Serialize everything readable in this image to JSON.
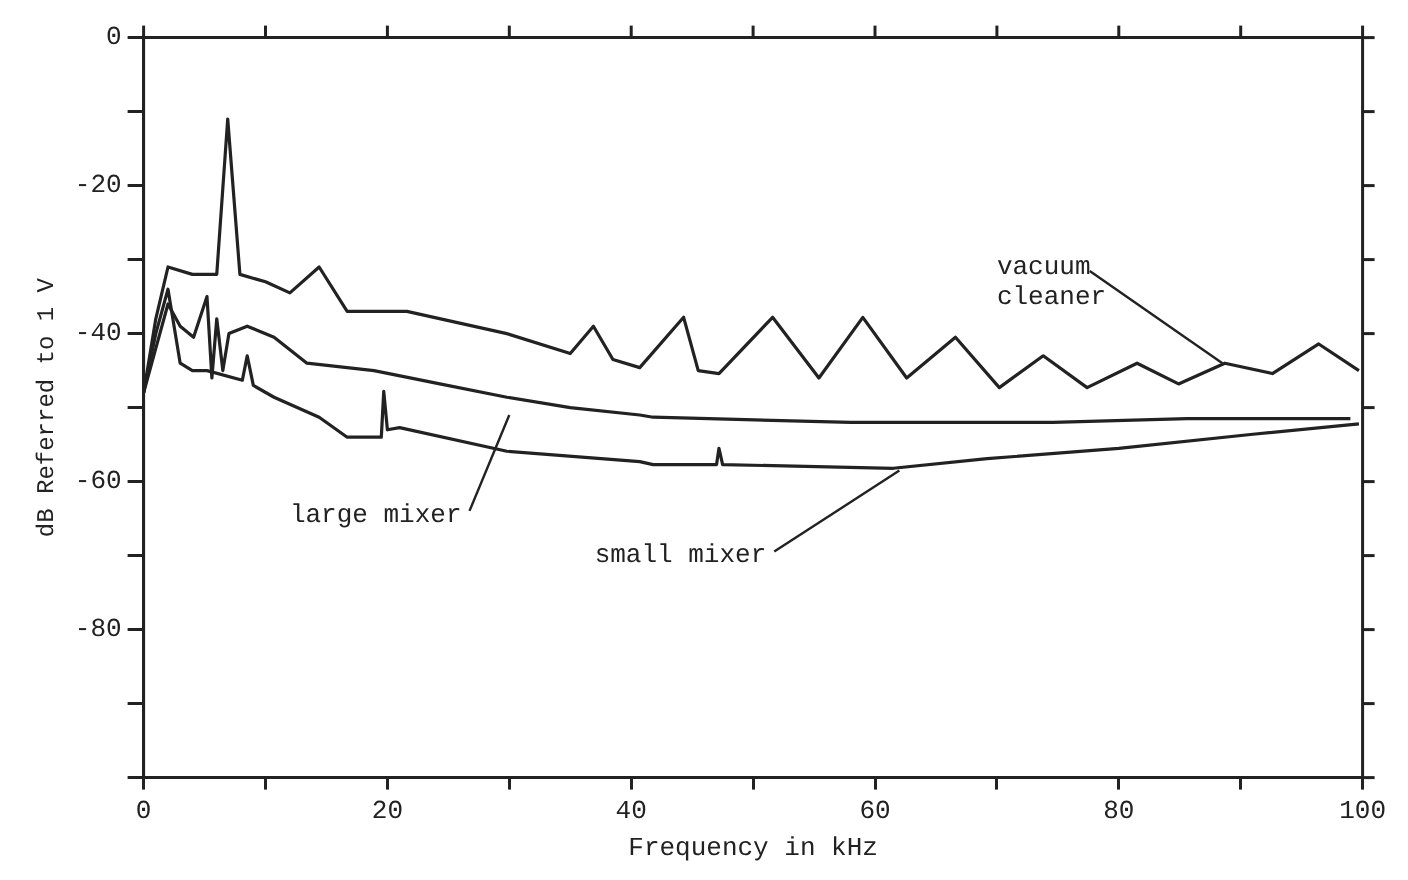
{
  "chart_data": {
    "type": "line",
    "xlabel": "Frequency in kHz",
    "ylabel": "dB Referred to 1 V",
    "xlim": [
      0,
      100
    ],
    "ylim": [
      -100,
      0
    ],
    "xticks": [
      0,
      {
        "value": 10,
        "label": null
      },
      20,
      {
        "value": 30,
        "label": null
      },
      40,
      {
        "value": 50,
        "label": null
      },
      60,
      {
        "value": 70,
        "label": null
      },
      80,
      {
        "value": 90,
        "label": null
      },
      100
    ],
    "yticks": [
      {
        "value": -100,
        "label": null
      },
      {
        "value": -90,
        "label": null
      },
      -80,
      {
        "value": -70,
        "label": null
      },
      -60,
      {
        "value": -50,
        "label": null
      },
      -40,
      {
        "value": -30,
        "label": null
      },
      -20,
      {
        "value": -10,
        "label": null
      },
      0
    ],
    "grid": false,
    "legend": false,
    "marker": "none",
    "line_style": "solid",
    "series": [
      {
        "name": "vacuum cleaner",
        "color": "#222222",
        "x": [
          0,
          1,
          2,
          4,
          6,
          6.9,
          7.9,
          10,
          12,
          14.4,
          16.7,
          21.6,
          29.8,
          35,
          36.9,
          38.5,
          40.7,
          44.3,
          45.5,
          47.2,
          51.6,
          55.4,
          59,
          62.6,
          66.6,
          70.2,
          73.8,
          77.4,
          81.5,
          84.9,
          88.7,
          92.6,
          96.4,
          99.7
        ],
        "values": [
          -48,
          -38,
          -31,
          -32,
          -32,
          -11,
          -32,
          -33,
          -34.5,
          -31,
          -37,
          -37,
          -40,
          -42.7,
          -39,
          -43.5,
          -44.6,
          -37.8,
          -45,
          -45.4,
          -37.8,
          -46,
          -37.8,
          -46,
          -40.5,
          -47.3,
          -43,
          -47.3,
          -44,
          -46.8,
          -44,
          -45.4,
          -41.4,
          -45
        ]
      },
      {
        "name": "large mixer",
        "color": "#222222",
        "x": [
          0,
          1,
          2,
          3,
          4.1,
          5.2,
          5.6,
          6,
          6.5,
          7,
          8.5,
          10.7,
          13.4,
          18.9,
          24.3,
          29.8,
          35,
          40.7,
          41.8,
          58,
          74.6,
          85.6,
          99
        ],
        "values": [
          -48,
          -42,
          -36,
          -39,
          -40.5,
          -35,
          -46,
          -38,
          -45,
          -40,
          -39,
          -40.5,
          -44,
          -45,
          -46.8,
          -48.6,
          -50,
          -51,
          -51.3,
          -52,
          -52,
          -51.5,
          -51.5
        ]
      },
      {
        "name": "small mixer",
        "color": "#222222",
        "x": [
          0,
          1,
          2,
          3,
          4,
          5.2,
          8.1,
          8.5,
          9,
          10.7,
          14.4,
          16.7,
          19.5,
          19.7,
          20,
          21,
          29.8,
          40.7,
          41.8,
          47,
          47.2,
          47.5,
          61.5,
          69.2,
          80,
          91,
          99.7
        ],
        "values": [
          -48,
          -40,
          -34,
          -44,
          -45,
          -45,
          -46.3,
          -43,
          -47,
          -48.6,
          -51.3,
          -54,
          -54,
          -47.8,
          -53,
          -52.7,
          -55.9,
          -57.3,
          -57.7,
          -57.7,
          -55.5,
          -57.7,
          -58.2,
          -56.9,
          -55.5,
          -53.6,
          -52.2
        ]
      }
    ]
  }
}
